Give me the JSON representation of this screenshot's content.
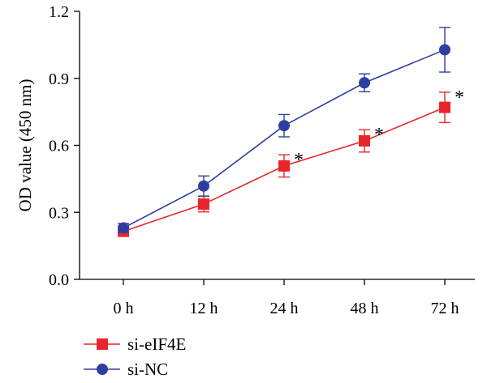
{
  "chart_data": {
    "type": "line",
    "categories": [
      "0 h",
      "12 h",
      "24 h",
      "48 h",
      "72 h"
    ],
    "ylabel": "OD value (450 nm)",
    "xlabel": "",
    "title": "",
    "ylim": [
      0.0,
      1.2
    ],
    "yticks": [
      "0.0",
      "0.3",
      "0.6",
      "0.9",
      "1.2"
    ],
    "grid": false,
    "legend_position": "bottom-left",
    "series": [
      {
        "name": "si-eIF4E",
        "color": "#e8262b",
        "marker": "square",
        "values": [
          0.215,
          0.337,
          0.508,
          0.62,
          0.77
        ],
        "errors": [
          0.015,
          0.035,
          0.05,
          0.05,
          0.068
        ],
        "annotations": [
          "",
          "",
          "*",
          "*",
          "*"
        ]
      },
      {
        "name": "si-NC",
        "color": "#2e3ea0",
        "marker": "circle",
        "values": [
          0.23,
          0.418,
          0.688,
          0.88,
          1.028
        ],
        "errors": [
          0.02,
          0.045,
          0.05,
          0.04,
          0.1
        ],
        "annotations": [
          "",
          "",
          "",
          "",
          ""
        ]
      }
    ]
  }
}
